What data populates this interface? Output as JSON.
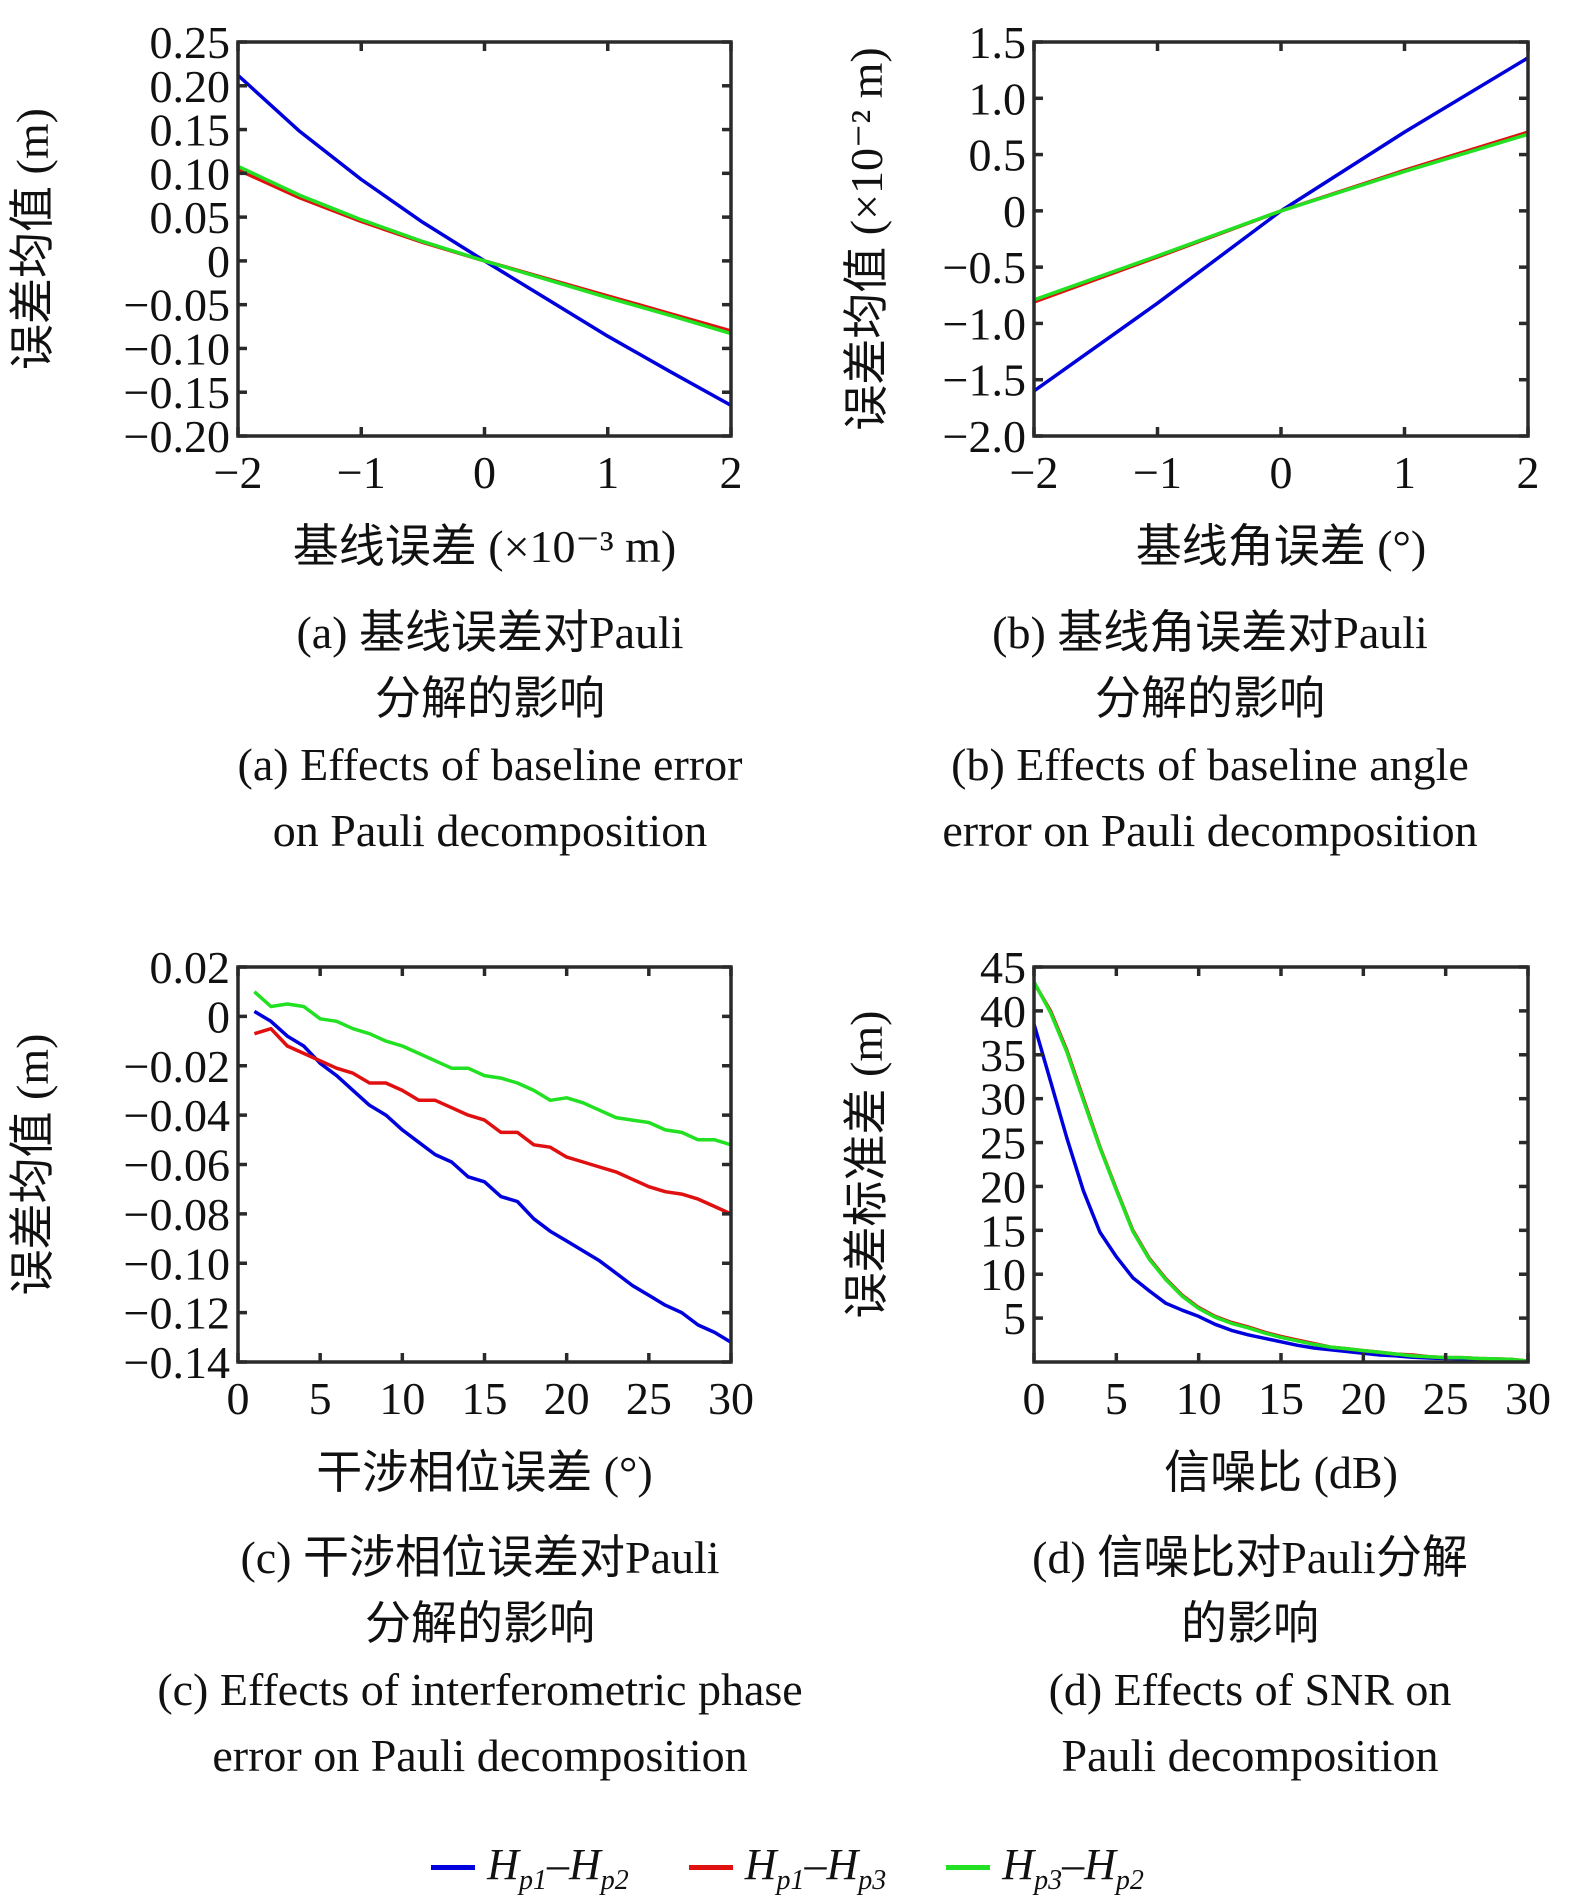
{
  "legend": [
    {
      "id": "s1",
      "label_main": "H",
      "sub1": "p1",
      "sep": "–",
      "label_main2": "H",
      "sub2": "p2",
      "color": "#0000dd"
    },
    {
      "id": "s2",
      "label_main": "H",
      "sub1": "p1",
      "sep": "–",
      "label_main2": "H",
      "sub2": "p3",
      "color": "#e01010"
    },
    {
      "id": "s3",
      "label_main": "H",
      "sub1": "p3",
      "sep": "–",
      "label_main2": "H",
      "sub2": "p2",
      "color": "#22e022"
    }
  ],
  "chart_data": [
    {
      "id": "a",
      "type": "line",
      "xlabel": "基线误差 (×10⁻³ m)",
      "ylabel": "误差均值 (m)",
      "xlim": [
        -2,
        2
      ],
      "ylim": [
        -0.2,
        0.25
      ],
      "xticks": [
        -2,
        -1,
        0,
        1,
        2
      ],
      "xtick_labels": [
        "−2",
        "−1",
        "0",
        "1",
        "2"
      ],
      "yticks": [
        0.25,
        0.2,
        0.15,
        0.1,
        0.05,
        0,
        -0.05,
        -0.1,
        -0.15,
        -0.2
      ],
      "ytick_labels": [
        "0.25",
        "0.20",
        "0.15",
        "0.10",
        "0.05",
        "0",
        "−0.05",
        "−0.10",
        "−0.15",
        "−0.20"
      ],
      "grid": false,
      "caption_cn": [
        "(a) 基线误差对Pauli",
        "分解的影响"
      ],
      "caption_en": [
        "(a) Effects of baseline error",
        "on Pauli decomposition"
      ],
      "x": [
        -2,
        -1.5,
        -1,
        -0.5,
        0,
        0.5,
        1,
        1.5,
        2
      ],
      "series": [
        {
          "name": "Hp1-Hp2",
          "color": "#0000dd",
          "values": [
            0.212,
            0.148,
            0.093,
            0.044,
            0.0,
            -0.043,
            -0.086,
            -0.126,
            -0.165
          ]
        },
        {
          "name": "Hp1-Hp3",
          "color": "#e01010",
          "values": [
            0.104,
            0.072,
            0.045,
            0.021,
            0.0,
            -0.02,
            -0.04,
            -0.06,
            -0.08
          ]
        },
        {
          "name": "Hp3-Hp2",
          "color": "#22e022",
          "values": [
            0.108,
            0.075,
            0.047,
            0.022,
            0.0,
            -0.021,
            -0.042,
            -0.062,
            -0.083
          ]
        }
      ]
    },
    {
      "id": "b",
      "type": "line",
      "xlabel": "基线角误差 (°)",
      "ylabel": "误差均值 (×10⁻² m)",
      "xlim": [
        -2,
        2
      ],
      "ylim": [
        -2.0,
        1.5
      ],
      "xticks": [
        -2,
        -1,
        0,
        1,
        2
      ],
      "xtick_labels": [
        "−2",
        "−1",
        "0",
        "1",
        "2"
      ],
      "yticks": [
        1.5,
        1.0,
        0.5,
        0,
        -0.5,
        -1.0,
        -1.5,
        -2.0
      ],
      "ytick_labels": [
        "1.5",
        "1.0",
        "0.5",
        "0",
        "−0.5",
        "−1.0",
        "−1.5",
        "−2.0"
      ],
      "grid": false,
      "caption_cn": [
        "(b) 基线角误差对Pauli",
        "分解的影响"
      ],
      "caption_en": [
        "(b) Effects of baseline angle",
        "error on Pauli decomposition"
      ],
      "x": [
        -2,
        -1,
        0,
        1,
        2
      ],
      "series": [
        {
          "name": "Hp1-Hp2",
          "color": "#0000dd",
          "values": [
            -1.6,
            -0.82,
            0.0,
            0.7,
            1.36
          ]
        },
        {
          "name": "Hp1-Hp3",
          "color": "#e01010",
          "values": [
            -0.81,
            -0.41,
            0.0,
            0.36,
            0.7
          ]
        },
        {
          "name": "Hp3-Hp2",
          "color": "#22e022",
          "values": [
            -0.79,
            -0.4,
            0.0,
            0.35,
            0.68
          ]
        }
      ]
    },
    {
      "id": "c",
      "type": "line",
      "xlabel": "干涉相位误差 (°)",
      "ylabel": "误差均值 (m)",
      "xlim": [
        0,
        30
      ],
      "ylim": [
        -0.14,
        0.02
      ],
      "xticks": [
        0,
        5,
        10,
        15,
        20,
        25,
        30
      ],
      "xtick_labels": [
        "0",
        "5",
        "10",
        "15",
        "20",
        "25",
        "30"
      ],
      "yticks": [
        0.02,
        0,
        -0.02,
        -0.04,
        -0.06,
        -0.08,
        -0.1,
        -0.12,
        -0.14
      ],
      "ytick_labels": [
        "0.02",
        "0",
        "−0.02",
        "−0.04",
        "−0.06",
        "−0.08",
        "−0.10",
        "−0.12",
        "−0.14"
      ],
      "grid": false,
      "caption_cn": [
        "(c) 干涉相位误差对Pauli",
        "分解的影响"
      ],
      "caption_en": [
        "(c) Effects of interferometric phase",
        "error on Pauli decomposition"
      ],
      "x": [
        1,
        2,
        3,
        4,
        5,
        6,
        7,
        8,
        9,
        10,
        11,
        12,
        13,
        14,
        15,
        16,
        17,
        18,
        19,
        20,
        21,
        22,
        23,
        24,
        25,
        26,
        27,
        28,
        29,
        30
      ],
      "series": [
        {
          "name": "Hp1-Hp2",
          "color": "#0000dd",
          "values": [
            0.002,
            -0.002,
            -0.008,
            -0.012,
            -0.019,
            -0.024,
            -0.03,
            -0.036,
            -0.04,
            -0.046,
            -0.051,
            -0.056,
            -0.059,
            -0.065,
            -0.067,
            -0.073,
            -0.075,
            -0.082,
            -0.087,
            -0.091,
            -0.095,
            -0.099,
            -0.104,
            -0.109,
            -0.113,
            -0.117,
            -0.12,
            -0.125,
            -0.128,
            -0.132
          ]
        },
        {
          "name": "Hp1-Hp3",
          "color": "#e01010",
          "values": [
            -0.007,
            -0.005,
            -0.012,
            -0.015,
            -0.018,
            -0.021,
            -0.023,
            -0.027,
            -0.027,
            -0.03,
            -0.034,
            -0.034,
            -0.037,
            -0.04,
            -0.042,
            -0.047,
            -0.047,
            -0.052,
            -0.053,
            -0.057,
            -0.059,
            -0.061,
            -0.063,
            -0.066,
            -0.069,
            -0.071,
            -0.072,
            -0.074,
            -0.077,
            -0.08
          ]
        },
        {
          "name": "Hp3-Hp2",
          "color": "#22e022",
          "values": [
            0.01,
            0.004,
            0.005,
            0.004,
            -0.001,
            -0.002,
            -0.005,
            -0.007,
            -0.01,
            -0.012,
            -0.015,
            -0.018,
            -0.021,
            -0.021,
            -0.024,
            -0.025,
            -0.027,
            -0.03,
            -0.034,
            -0.033,
            -0.035,
            -0.038,
            -0.041,
            -0.042,
            -0.043,
            -0.046,
            -0.047,
            -0.05,
            -0.05,
            -0.052
          ]
        }
      ]
    },
    {
      "id": "d",
      "type": "line",
      "xlabel": "信噪比 (dB)",
      "ylabel": "误差标准差 (m)",
      "xlim": [
        0,
        30
      ],
      "ylim": [
        0,
        45
      ],
      "xticks": [
        0,
        5,
        10,
        15,
        20,
        25,
        30
      ],
      "xtick_labels": [
        "0",
        "5",
        "10",
        "15",
        "20",
        "25",
        "30"
      ],
      "yticks": [
        45,
        40,
        35,
        30,
        25,
        20,
        15,
        10,
        5
      ],
      "ytick_labels": [
        "45",
        "40",
        "35",
        "30",
        "25",
        "20",
        "15",
        "10",
        "5"
      ],
      "grid": false,
      "caption_cn": [
        "(d) 信噪比对Pauli分解",
        "的影响"
      ],
      "caption_en": [
        "(d) Effects of SNR on",
        "Pauli decomposition"
      ],
      "x": [
        0,
        1,
        2,
        3,
        4,
        5,
        6,
        7,
        8,
        9,
        10,
        11,
        12,
        13,
        14,
        15,
        16,
        17,
        18,
        19,
        20,
        21,
        22,
        23,
        24,
        25,
        26,
        27,
        28,
        29,
        30
      ],
      "series": [
        {
          "name": "Hp1-Hp2",
          "color": "#0000dd",
          "values": [
            38.5,
            32.0,
            25.5,
            19.5,
            14.8,
            12.0,
            9.6,
            8.1,
            6.7,
            5.9,
            5.2,
            4.3,
            3.6,
            3.1,
            2.7,
            2.3,
            1.9,
            1.6,
            1.4,
            1.2,
            1.0,
            0.8,
            0.7,
            0.55,
            0.45,
            0.4,
            0.35,
            0.3,
            0.25,
            0.2,
            0.1
          ]
        },
        {
          "name": "Hp1-Hp3",
          "color": "#e01010",
          "values": [
            43.2,
            40.0,
            35.5,
            30.0,
            24.5,
            19.7,
            15.0,
            11.8,
            9.5,
            7.6,
            6.2,
            5.2,
            4.5,
            4.0,
            3.4,
            2.9,
            2.5,
            2.1,
            1.7,
            1.5,
            1.3,
            1.1,
            0.9,
            0.8,
            0.6,
            0.5,
            0.5,
            0.4,
            0.35,
            0.3,
            0.1
          ]
        },
        {
          "name": "Hp3-Hp2",
          "color": "#22e022",
          "values": [
            43.3,
            39.8,
            35.3,
            29.8,
            24.4,
            19.6,
            14.9,
            11.7,
            9.4,
            7.5,
            6.1,
            5.1,
            4.4,
            3.9,
            3.3,
            2.8,
            2.4,
            2.0,
            1.7,
            1.5,
            1.3,
            1.1,
            0.9,
            0.7,
            0.6,
            0.5,
            0.5,
            0.4,
            0.35,
            0.3,
            0.1
          ]
        }
      ]
    }
  ]
}
